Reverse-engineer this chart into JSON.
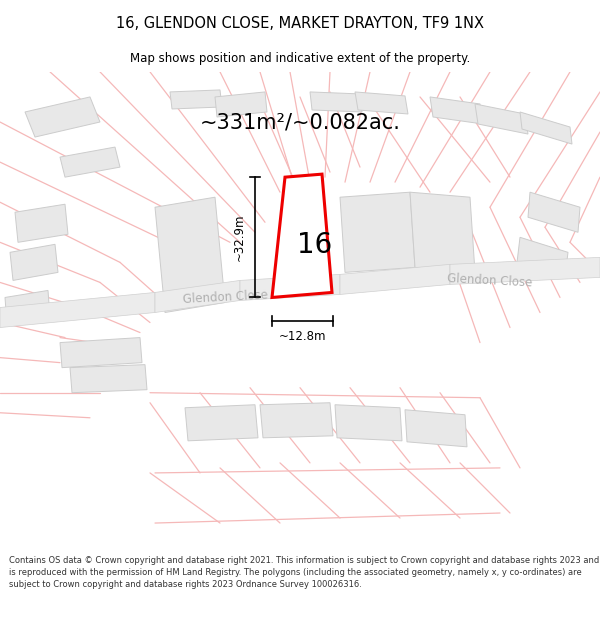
{
  "title": "16, GLENDON CLOSE, MARKET DRAYTON, TF9 1NX",
  "subtitle": "Map shows position and indicative extent of the property.",
  "area_text": "~331m²/~0.082ac.",
  "dim_width": "~12.8m",
  "dim_height": "~32.9m",
  "house_number": "16",
  "road_label_left": "Glendon Close",
  "road_label_right": "Glendon Close",
  "footer_text": "Contains OS data © Crown copyright and database right 2021. This information is subject to Crown copyright and database rights 2023 and is reproduced with the permission of HM Land Registry. The polygons (including the associated geometry, namely x, y co-ordinates) are subject to Crown copyright and database rights 2023 Ordnance Survey 100026316.",
  "bg_color": "#ffffff",
  "plot_fill": "#ffffff",
  "plot_outline": "#ee0000",
  "light_line_color": "#f5b8b8",
  "block_fill": "#e8e8e8",
  "block_edge": "#cccccc",
  "dim_line_color": "#000000",
  "text_color": "#000000",
  "road_text_color": "#b0b0b0",
  "footer_color": "#333333"
}
